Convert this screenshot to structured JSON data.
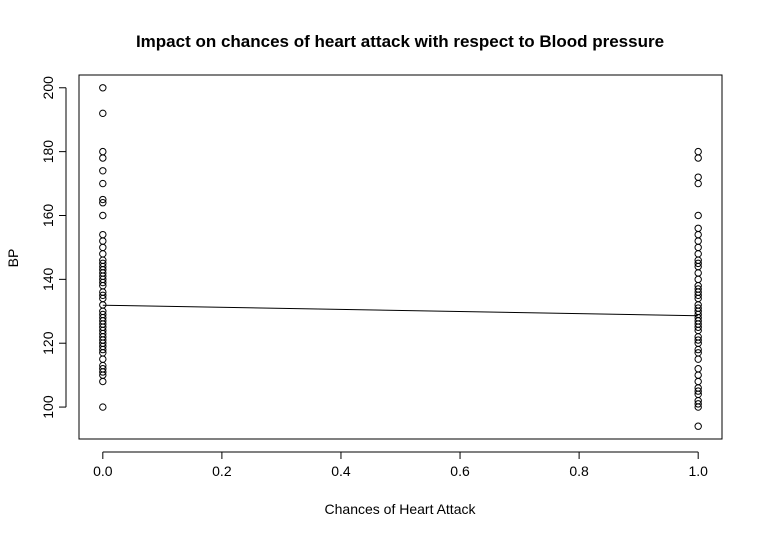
{
  "chart_data": {
    "type": "scatter",
    "title": "Impact on chances of heart attack with respect to Blood pressure",
    "xlabel": "Chances of Heart Attack",
    "ylabel": "BP",
    "xlim": [
      -0.04,
      1.04
    ],
    "ylim": [
      90,
      204
    ],
    "x_ticks": [
      0.0,
      0.2,
      0.4,
      0.6,
      0.8,
      1.0
    ],
    "x_tick_labels": [
      "0.0",
      "0.2",
      "0.4",
      "0.6",
      "0.8",
      "1.0"
    ],
    "y_ticks": [
      100,
      120,
      140,
      160,
      180,
      200
    ],
    "y_tick_labels": [
      "100",
      "120",
      "140",
      "160",
      "180",
      "200"
    ],
    "grid": false,
    "series": [
      {
        "x": [
          0,
          0,
          0,
          0,
          0,
          0,
          0,
          0,
          0,
          0,
          0,
          0,
          0,
          0,
          0,
          0,
          0,
          0,
          0,
          0,
          0,
          0,
          0,
          0,
          0,
          0,
          0,
          0,
          0,
          0,
          0,
          0,
          0,
          0,
          0,
          0,
          0,
          0,
          0,
          0,
          0,
          0,
          0,
          0,
          0,
          0,
          0
        ],
        "y": [
          200,
          192,
          180,
          178,
          174,
          170,
          165,
          164,
          160,
          154,
          152,
          150,
          148,
          146,
          145,
          144,
          142,
          140,
          138,
          136,
          135,
          134,
          132,
          130,
          128,
          126,
          125,
          124,
          123,
          122,
          120,
          118,
          117,
          115,
          112,
          110,
          108,
          100,
          143,
          141,
          139,
          129,
          127,
          121,
          119,
          113,
          111
        ]
      },
      {
        "x": [
          1,
          1,
          1,
          1,
          1,
          1,
          1,
          1,
          1,
          1,
          1,
          1,
          1,
          1,
          1,
          1,
          1,
          1,
          1,
          1,
          1,
          1,
          1,
          1,
          1,
          1,
          1,
          1,
          1,
          1,
          1,
          1,
          1,
          1,
          1,
          1,
          1,
          1,
          1,
          1,
          1,
          1,
          1,
          1,
          1
        ],
        "y": [
          180,
          178,
          172,
          170,
          160,
          156,
          154,
          152,
          150,
          148,
          146,
          145,
          142,
          140,
          138,
          136,
          135,
          134,
          132,
          130,
          129,
          128,
          126,
          125,
          124,
          122,
          120,
          118,
          115,
          112,
          110,
          108,
          106,
          105,
          104,
          102,
          101,
          100,
          94,
          144,
          137,
          131,
          127,
          121,
          117
        ]
      }
    ],
    "trend_line": {
      "x": [
        0,
        1
      ],
      "y": [
        131.9,
        128.6
      ]
    }
  }
}
